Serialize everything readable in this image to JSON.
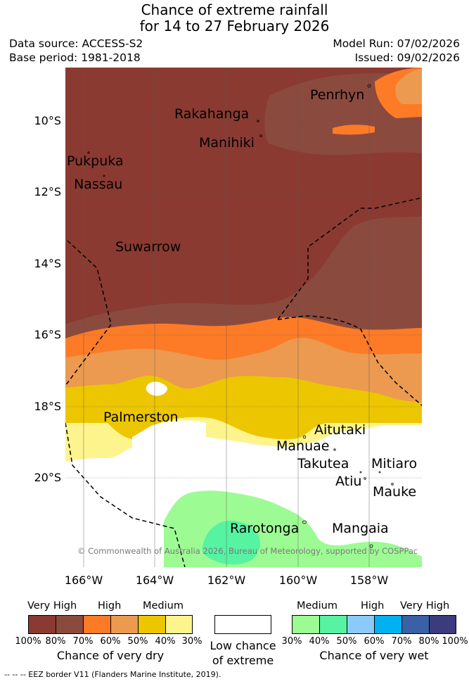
{
  "header": {
    "title_line1": "Chance of extreme rainfall",
    "title_line2": "for 14 to 27 February 2026",
    "data_source": "Data source: ACCESS-S2",
    "base_period": "Base period: 1981-2018",
    "model_run": "Model Run: 07/02/2026",
    "issued": "Issued: 09/02/2026"
  },
  "map": {
    "y_axis_labels": [
      "10°S",
      "12°S",
      "14°S",
      "16°S",
      "18°S",
      "20°S"
    ],
    "x_axis_labels": [
      "166°W",
      "164°W",
      "162°W",
      "160°W",
      "158°W"
    ],
    "islands": {
      "penrhyn": "Penrhyn",
      "rakahanga": "Rakahanga",
      "manihiki": "Manihiki",
      "pukpuka": "Pukpuka",
      "nassau": "Nassau",
      "suwarrow": "Suwarrow",
      "palmerston": "Palmerston",
      "aitutaki": "Aitutaki",
      "manuae": "Manuae",
      "takutea": "Takutea",
      "mitiaro": "Mitiaro",
      "atiu": "Atiu",
      "mauke": "Mauke",
      "rarotonga": "Rarotonga",
      "mangaia": "Mangaia"
    },
    "copyright": "© Commonwealth of Australia 2026, Bureau of Meteorology, supported by COSPPac"
  },
  "colors": {
    "dry_100_80": "#8b3a31",
    "dry_80_70": "#8b4a3e",
    "dry_70_60": "#fd7b26",
    "dry_60_50": "#eb9a50",
    "dry_50_40": "#ecc600",
    "dry_40_30": "#fdf48e",
    "low": "#ffffff",
    "wet_30_40": "#9dfb94",
    "wet_40_50": "#56f3a2",
    "wet_50_60": "#8acbfc",
    "wet_60_70": "#00b0f0",
    "wet_70_80": "#3a60a6",
    "wet_80_100": "#3b3b7e"
  },
  "legend": {
    "dry": {
      "heads": [
        "Very High",
        "High",
        "Medium"
      ],
      "ticks": [
        "100%",
        "80%",
        "70%",
        "60%",
        "50%",
        "40%",
        "30%"
      ],
      "caption": "Chance of very dry"
    },
    "low": {
      "caption_line1": "Low chance",
      "caption_line2": "of extreme"
    },
    "wet": {
      "heads": [
        "Medium",
        "High",
        "Very High"
      ],
      "ticks": [
        "30%",
        "40%",
        "50%",
        "60%",
        "70%",
        "80%",
        "100%"
      ],
      "caption": "Chance of very wet"
    },
    "footnote": "--  --  -- EEZ border V11 (Flanders Marine Institute, 2019)."
  }
}
